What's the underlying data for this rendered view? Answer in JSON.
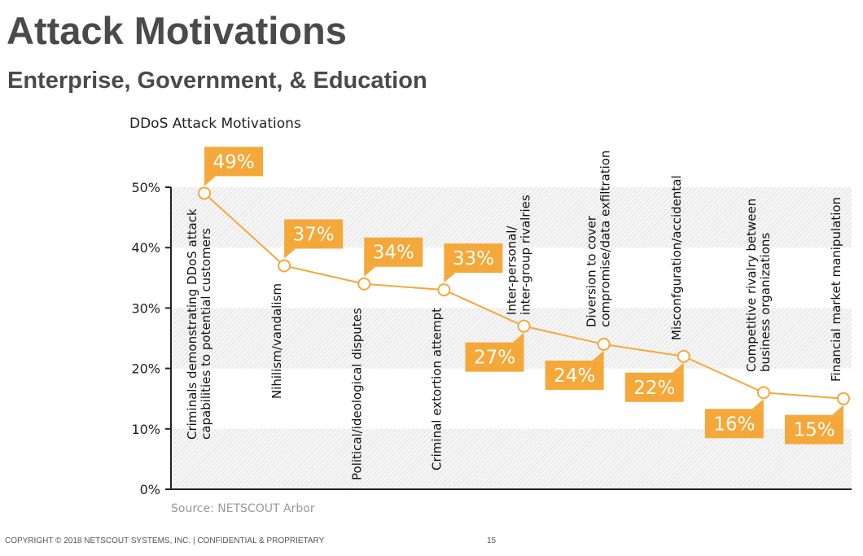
{
  "slide": {
    "title": "Attack Motivations",
    "subtitle": "Enterprise, Government, & Education",
    "footer": "COPYRIGHT © 2018 NETSCOUT SYSTEMS, INC.  |  CONFIDENTIAL & PROPRIETARY",
    "page_number": "15"
  },
  "colors": {
    "accent": "#f5a83a",
    "stripe": "#ececec",
    "axis": "#222222",
    "title_text": "#4a4a4a",
    "source_text": "#999999"
  },
  "chart_data": {
    "type": "line",
    "title": "DDoS Attack Motivations",
    "source": "Source: NETSCOUT Arbor",
    "xlabel": "",
    "ylabel": "",
    "ylim": [
      0,
      50
    ],
    "yticks": [
      0,
      10,
      20,
      30,
      40,
      50
    ],
    "ytick_labels": [
      "0%",
      "10%",
      "20%",
      "30%",
      "40%",
      "50%"
    ],
    "grid": "alternating hatched bands",
    "categories": [
      [
        "Criminals demonstrating DDoS attack",
        "capabilities to potential customers"
      ],
      [
        "Nihilism/vandalism"
      ],
      [
        "Political/ideological disputes"
      ],
      [
        "Criminal extortion attempt"
      ],
      [
        "Inter-personal/",
        "inter-group rivalries"
      ],
      [
        "Diversion to cover",
        "compromise/data exfiltration"
      ],
      [
        "Misconfguration/accidental"
      ],
      [
        "Competitive rivalry between",
        "business organizations"
      ],
      [
        "Financial market manipulation"
      ]
    ],
    "values": [
      49,
      37,
      34,
      33,
      27,
      24,
      22,
      16,
      15
    ],
    "value_labels": [
      "49%",
      "37%",
      "34%",
      "33%",
      "27%",
      "24%",
      "22%",
      "16%",
      "15%"
    ],
    "label_position": [
      "above",
      "above",
      "above",
      "above",
      "below",
      "below",
      "below",
      "below",
      "below"
    ]
  }
}
